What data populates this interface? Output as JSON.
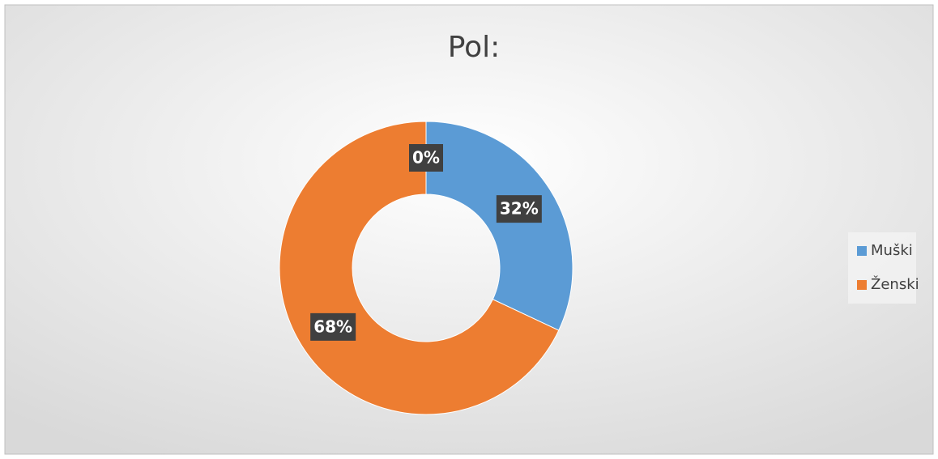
{
  "chart_data": {
    "type": "donut",
    "title": "Pol:",
    "categories": [
      "Muški",
      "Ženski",
      null
    ],
    "values": [
      32,
      68,
      0
    ],
    "value_labels": [
      "32%",
      "68%",
      "0%"
    ],
    "colors": [
      "#5b9bd5",
      "#ed7d31",
      "#a5a5a5"
    ],
    "legend": "right"
  }
}
